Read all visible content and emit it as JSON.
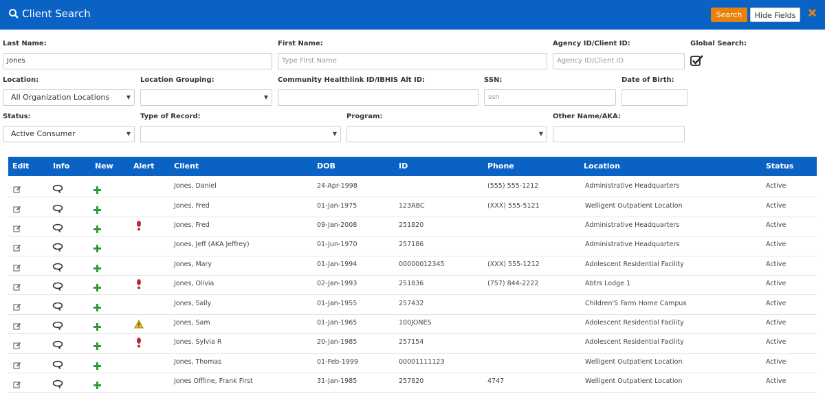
{
  "header": {
    "title": "Client Search",
    "buttons": [
      "Search",
      "Hide Fields"
    ]
  },
  "form": {
    "fields": [
      {
        "label": "Last Name:",
        "value": "Jones"
      },
      {
        "label": "First Name:",
        "placeholder": "Type First Name"
      },
      {
        "label": "Agency ID/Client ID:",
        "placeholder": "Agency ID/Client ID"
      },
      {
        "label": "Global Search:"
      },
      {
        "label": "Location:",
        "value": "All Organization Locations"
      },
      {
        "label": "Location Grouping:"
      },
      {
        "label": "Community Healthlink ID/IBHIS Alt ID:"
      },
      {
        "label": "SSN:",
        "placeholder": "ssn"
      },
      {
        "label": "Date of Birth:"
      },
      {
        "label": "Status:",
        "value": "Active Consumer"
      },
      {
        "label": "Type of Record:"
      },
      {
        "label": "Program:"
      },
      {
        "label": "Other Name/AKA:"
      }
    ]
  },
  "table": {
    "columns": [
      "Edit",
      "Info",
      "New",
      "Alert",
      "Client",
      "DOB",
      "ID",
      "Phone",
      "Location",
      "Status"
    ],
    "rows": [
      {
        "client": "Jones, Daniel",
        "dob": "24-Apr-1998",
        "phone": "(555) 555-1212",
        "location": "Administrative Headquarters",
        "status": "Active"
      },
      {
        "client": "Jones, Fred",
        "dob": "01-Jan-1975",
        "id": "123ABC",
        "phone": "(XXX) 555-5121",
        "location": "Welligent Outpatient Location",
        "status": "Active"
      },
      {
        "client": "Jones, Fred",
        "dob": "09-Jan-2008",
        "id": "251820",
        "location": "Administrative Headquarters",
        "status": "Active"
      },
      {
        "client": "Jones, Jeff (AKA Jeffrey)",
        "dob": "01-Jun-1970",
        "id": "257186",
        "location": "Administrative Headquarters",
        "status": "Active"
      },
      {
        "client": "Jones, Mary",
        "dob": "01-Jan-1994",
        "id": "00000012345",
        "phone": "(XXX) 555-1212",
        "location": "Adolescent Residential Facility",
        "status": "Active"
      },
      {
        "client": "Jones, Olivia",
        "dob": "02-Jan-1993",
        "id": "251836",
        "phone": "(757) 844-2222",
        "location": "Abtrs Lodge 1",
        "status": "Active"
      },
      {
        "client": "Jones, Sally",
        "dob": "01-Jan-1955",
        "id": "257432",
        "location": "Children'S Farm Home Campus",
        "status": "Active"
      },
      {
        "client": "Jones, Sam",
        "dob": "01-Jan-1965",
        "id": "100JONES",
        "location": "Adolescent Residential Facility",
        "status": "Active"
      },
      {
        "client": "Jones, Sylvia R",
        "dob": "20-Jan-1985",
        "id": "257154",
        "location": "Adolescent Residential Facility",
        "status": "Active"
      },
      {
        "client": "Jones, Thomas",
        "dob": "01-Feb-1999",
        "id": "00001111123",
        "location": "Welligent Outpatient Location",
        "status": "Active"
      },
      {
        "client": "Jones Offline, Frank First",
        "dob": "31-Jan-1985",
        "id": "257820",
        "phone": "4747",
        "location": "Welligent Outpatient Location",
        "status": "Active"
      }
    ]
  }
}
